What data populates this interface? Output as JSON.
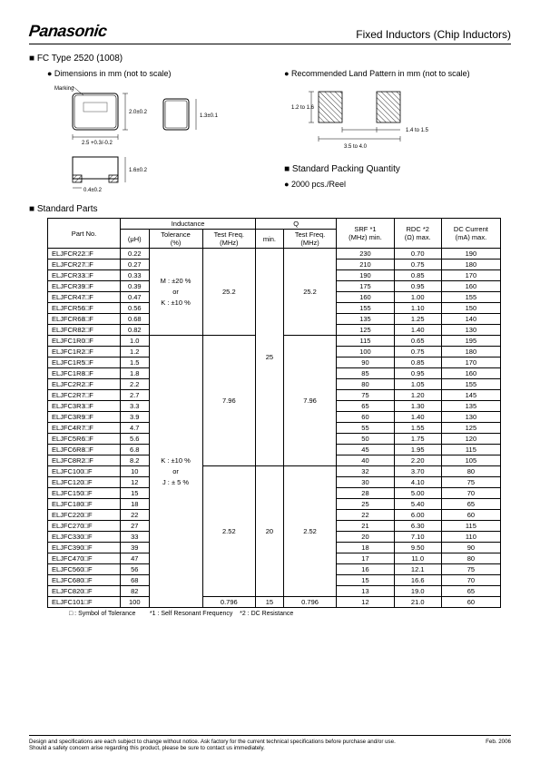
{
  "header": {
    "brand": "Panasonic",
    "title": "Fixed Inductors (Chip Inductors)"
  },
  "sections": {
    "type_heading": "■ FC Type 2520 (1008)",
    "dimensions_label": "● Dimensions in mm (not to scale)",
    "land_pattern_label": "● Recommended Land Pattern in mm (not to scale)",
    "packing_heading": "■ Standard Packing Quantity",
    "packing_value": "● 2000 pcs./Reel",
    "standard_parts_heading": "■ Standard Parts",
    "marking_label": "Marking"
  },
  "dimensions": {
    "w": "2.5 +0.3/-0.2",
    "h": "2.0±0.2",
    "thick": "1.3±0.1",
    "body_h": "1.6±0.2",
    "foot": "0.4±0.2"
  },
  "land_pattern": {
    "pad_h": "1.2 to 1.6",
    "span": "3.5 to 4.0",
    "pitch_out": "1.4 to 1.5"
  },
  "table": {
    "headers": {
      "part_no": "Part No.",
      "inductance": "Inductance",
      "ind_uh": "(μH)",
      "tol": "Tolerance\n(%)",
      "tfreq1": "Test Freq.\n(MHz)",
      "q": "Q",
      "min": "min.",
      "tfreq2": "Test Freq.\n(MHz)",
      "srf": "SRF *1\n(MHz) min.",
      "rdc": "RDC *2\n(Ω) max.",
      "dc": "DC Current\n(mA) max."
    },
    "tol_group1": "M : ±20 %\nor\nK : ±10 %",
    "tol_group2": "K : ±10 %\nor\nJ : ± 5 %",
    "rows": [
      {
        "pn": "ELJFCR22□F",
        "uh": "0.22",
        "tolg": 1,
        "tf": "25.2",
        "q": "25",
        "qtf": "25.2",
        "srf": "230",
        "rdc": "0.70",
        "dc": "190"
      },
      {
        "pn": "ELJFCR27□F",
        "uh": "0.27",
        "tolg": 1,
        "tf": "25.2",
        "q": "25",
        "qtf": "25.2",
        "srf": "210",
        "rdc": "0.75",
        "dc": "180"
      },
      {
        "pn": "ELJFCR33□F",
        "uh": "0.33",
        "tolg": 1,
        "tf": "25.2",
        "q": "25",
        "qtf": "25.2",
        "srf": "190",
        "rdc": "0.85",
        "dc": "170"
      },
      {
        "pn": "ELJFCR39□F",
        "uh": "0.39",
        "tolg": 1,
        "tf": "25.2",
        "q": "25",
        "qtf": "25.2",
        "srf": "175",
        "rdc": "0.95",
        "dc": "160"
      },
      {
        "pn": "ELJFCR47□F",
        "uh": "0.47",
        "tolg": 1,
        "tf": "25.2",
        "q": "25",
        "qtf": "25.2",
        "srf": "160",
        "rdc": "1.00",
        "dc": "155"
      },
      {
        "pn": "ELJFCR56□F",
        "uh": "0.56",
        "tolg": 1,
        "tf": "25.2",
        "q": "25",
        "qtf": "25.2",
        "srf": "155",
        "rdc": "1.10",
        "dc": "150"
      },
      {
        "pn": "ELJFCR68□F",
        "uh": "0.68",
        "tolg": 1,
        "tf": "25.2",
        "q": "25",
        "qtf": "25.2",
        "srf": "135",
        "rdc": "1.25",
        "dc": "140"
      },
      {
        "pn": "ELJFCR82□F",
        "uh": "0.82",
        "tolg": 1,
        "tf": "25.2",
        "q": "25",
        "qtf": "25.2",
        "srf": "125",
        "rdc": "1.40",
        "dc": "130"
      },
      {
        "pn": "ELJFC1R0□F",
        "uh": "1.0",
        "tolg": 2,
        "tf": "7.96",
        "q": "25",
        "qtf": "7.96",
        "srf": "115",
        "rdc": "0.65",
        "dc": "195"
      },
      {
        "pn": "ELJFC1R2□F",
        "uh": "1.2",
        "tolg": 2,
        "tf": "7.96",
        "q": "25",
        "qtf": "7.96",
        "srf": "100",
        "rdc": "0.75",
        "dc": "180"
      },
      {
        "pn": "ELJFC1R5□F",
        "uh": "1.5",
        "tolg": 2,
        "tf": "7.96",
        "q": "25",
        "qtf": "7.96",
        "srf": "90",
        "rdc": "0.85",
        "dc": "170"
      },
      {
        "pn": "ELJFC1R8□F",
        "uh": "1.8",
        "tolg": 2,
        "tf": "7.96",
        "q": "25",
        "qtf": "7.96",
        "srf": "85",
        "rdc": "0.95",
        "dc": "160"
      },
      {
        "pn": "ELJFC2R2□F",
        "uh": "2.2",
        "tolg": 2,
        "tf": "7.96",
        "q": "25",
        "qtf": "7.96",
        "srf": "80",
        "rdc": "1.05",
        "dc": "155"
      },
      {
        "pn": "ELJFC2R7□F",
        "uh": "2.7",
        "tolg": 2,
        "tf": "7.96",
        "q": "25",
        "qtf": "7.96",
        "srf": "75",
        "rdc": "1.20",
        "dc": "145"
      },
      {
        "pn": "ELJFC3R3□F",
        "uh": "3.3",
        "tolg": 2,
        "tf": "7.96",
        "q": "25",
        "qtf": "7.96",
        "srf": "65",
        "rdc": "1.30",
        "dc": "135"
      },
      {
        "pn": "ELJFC3R9□F",
        "uh": "3.9",
        "tolg": 2,
        "tf": "7.96",
        "q": "25",
        "qtf": "7.96",
        "srf": "60",
        "rdc": "1.40",
        "dc": "130"
      },
      {
        "pn": "ELJFC4R7□F",
        "uh": "4.7",
        "tolg": 2,
        "tf": "7.96",
        "q": "25",
        "qtf": "7.96",
        "srf": "55",
        "rdc": "1.55",
        "dc": "125"
      },
      {
        "pn": "ELJFC5R6□F",
        "uh": "5.6",
        "tolg": 2,
        "tf": "7.96",
        "q": "25",
        "qtf": "7.96",
        "srf": "50",
        "rdc": "1.75",
        "dc": "120"
      },
      {
        "pn": "ELJFC6R8□F",
        "uh": "6.8",
        "tolg": 2,
        "tf": "7.96",
        "q": "25",
        "qtf": "7.96",
        "srf": "45",
        "rdc": "1.95",
        "dc": "115"
      },
      {
        "pn": "ELJFC8R2□F",
        "uh": "8.2",
        "tolg": 2,
        "tf": "7.96",
        "q": "25",
        "qtf": "7.96",
        "srf": "40",
        "rdc": "2.20",
        "dc": "105"
      },
      {
        "pn": "ELJFC100□F",
        "uh": "10",
        "tolg": 2,
        "tf": "2.52",
        "q": "20",
        "qtf": "2.52",
        "srf": "32",
        "rdc": "3.70",
        "dc": "80"
      },
      {
        "pn": "ELJFC120□F",
        "uh": "12",
        "tolg": 2,
        "tf": "2.52",
        "q": "20",
        "qtf": "2.52",
        "srf": "30",
        "rdc": "4.10",
        "dc": "75"
      },
      {
        "pn": "ELJFC150□F",
        "uh": "15",
        "tolg": 2,
        "tf": "2.52",
        "q": "20",
        "qtf": "2.52",
        "srf": "28",
        "rdc": "5.00",
        "dc": "70"
      },
      {
        "pn": "ELJFC180□F",
        "uh": "18",
        "tolg": 2,
        "tf": "2.52",
        "q": "20",
        "qtf": "2.52",
        "srf": "25",
        "rdc": "5.40",
        "dc": "65"
      },
      {
        "pn": "ELJFC220□F",
        "uh": "22",
        "tolg": 2,
        "tf": "2.52",
        "q": "20",
        "qtf": "2.52",
        "srf": "22",
        "rdc": "6.00",
        "dc": "60"
      },
      {
        "pn": "ELJFC270□F",
        "uh": "27",
        "tolg": 2,
        "tf": "2.52",
        "q": "20",
        "qtf": "2.52",
        "srf": "21",
        "rdc": "6.30",
        "dc": "115"
      },
      {
        "pn": "ELJFC330□F",
        "uh": "33",
        "tolg": 2,
        "tf": "2.52",
        "q": "20",
        "qtf": "2.52",
        "srf": "20",
        "rdc": "7.10",
        "dc": "110"
      },
      {
        "pn": "ELJFC390□F",
        "uh": "39",
        "tolg": 2,
        "tf": "2.52",
        "q": "20",
        "qtf": "2.52",
        "srf": "18",
        "rdc": "9.50",
        "dc": "90"
      },
      {
        "pn": "ELJFC470□F",
        "uh": "47",
        "tolg": 2,
        "tf": "2.52",
        "q": "20",
        "qtf": "2.52",
        "srf": "17",
        "rdc": "11.0",
        "dc": "80"
      },
      {
        "pn": "ELJFC560□F",
        "uh": "56",
        "tolg": 2,
        "tf": "2.52",
        "q": "20",
        "qtf": "2.52",
        "srf": "16",
        "rdc": "12.1",
        "dc": "75"
      },
      {
        "pn": "ELJFC680□F",
        "uh": "68",
        "tolg": 2,
        "tf": "2.52",
        "q": "20",
        "qtf": "2.52",
        "srf": "15",
        "rdc": "16.6",
        "dc": "70"
      },
      {
        "pn": "ELJFC820□F",
        "uh": "82",
        "tolg": 2,
        "tf": "2.52",
        "q": "20",
        "qtf": "2.52",
        "srf": "13",
        "rdc": "19.0",
        "dc": "65"
      },
      {
        "pn": "ELJFC101□F",
        "uh": "100",
        "tolg": 2,
        "tf": "0.796",
        "q": "15",
        "qtf": "0.796",
        "srf": "12",
        "rdc": "21.0",
        "dc": "60"
      }
    ],
    "footnotes": {
      "sym": "□ : Symbol of Tolerance",
      "f1": "*1 : Self Resonant Frequency",
      "f2": "*2 : DC Resistance"
    }
  },
  "footer": {
    "line1": "Design and specifications are each subject to change without notice.  Ask factory for the current technical specifications before purchase and/or use.",
    "line2": "Should a safety concern arise regarding this product, please be sure to contact us immediately.",
    "date": "Feb. 2006"
  }
}
